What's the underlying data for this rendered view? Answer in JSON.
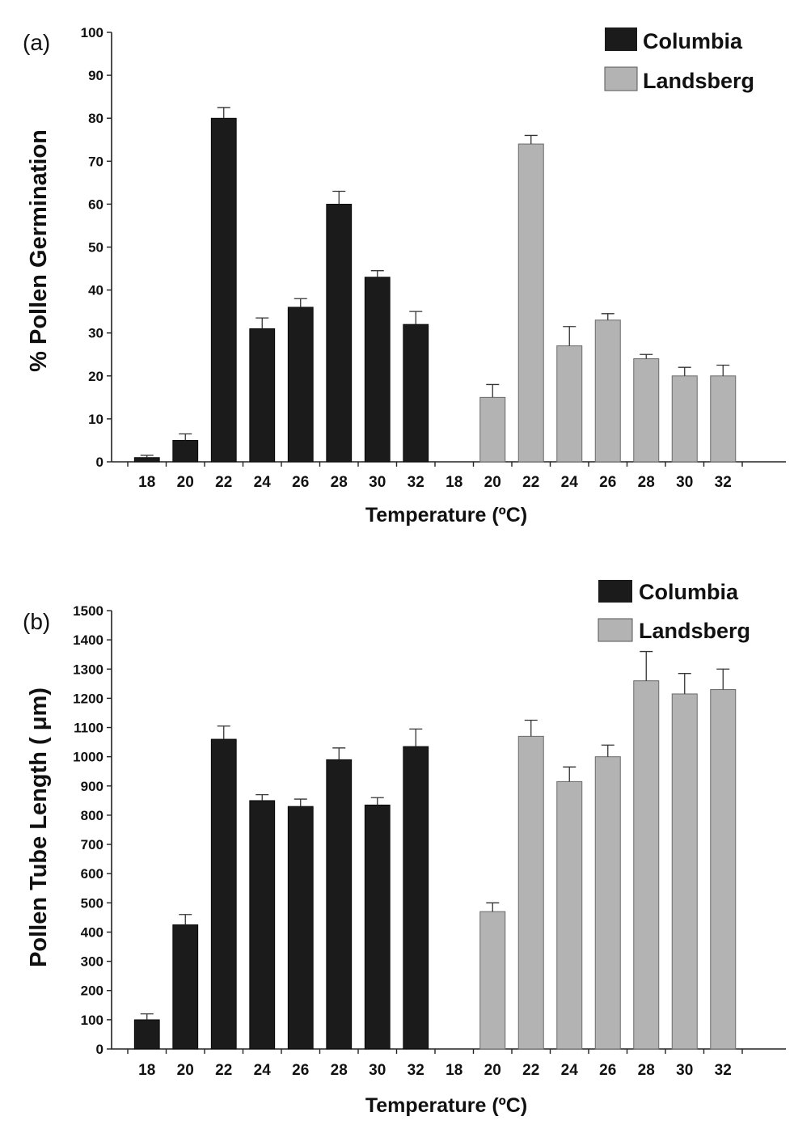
{
  "chart_data": [
    {
      "type": "bar",
      "panel_label": "(a)",
      "xlabel": "Temperature (ºC)",
      "ylabel": "% Pollen Germination",
      "ylim": [
        0,
        100
      ],
      "yticks": [
        0,
        10,
        20,
        30,
        40,
        50,
        60,
        70,
        80,
        90,
        100
      ],
      "legend_position": "top-right",
      "series": [
        {
          "name": "Columbia",
          "color": "#1b1b1b",
          "categories": [
            "18",
            "20",
            "22",
            "24",
            "26",
            "28",
            "30",
            "32"
          ],
          "values": [
            1,
            5,
            80,
            31,
            36,
            60,
            43,
            32
          ],
          "errors": [
            0.5,
            1.5,
            2.5,
            2.5,
            2,
            3,
            1.5,
            3
          ]
        },
        {
          "name": "Landsberg",
          "color": "#b3b3b3",
          "categories": [
            "18",
            "20",
            "22",
            "24",
            "26",
            "28",
            "30",
            "32"
          ],
          "values": [
            0,
            15,
            74,
            27,
            33,
            24,
            20,
            20
          ],
          "errors": [
            0,
            3,
            2,
            4.5,
            1.5,
            1,
            2,
            2.5
          ]
        }
      ]
    },
    {
      "type": "bar",
      "panel_label": "(b)",
      "xlabel": "Temperature (ºC)",
      "ylabel": "Pollen Tube Length ( μm)",
      "ylim": [
        0,
        1500
      ],
      "yticks": [
        0,
        100,
        200,
        300,
        400,
        500,
        600,
        700,
        800,
        900,
        1000,
        1100,
        1200,
        1300,
        1400,
        1500
      ],
      "legend_position": "top-right",
      "series": [
        {
          "name": "Columbia",
          "color": "#1b1b1b",
          "categories": [
            "18",
            "20",
            "22",
            "24",
            "26",
            "28",
            "30",
            "32"
          ],
          "values": [
            100,
            425,
            1060,
            850,
            830,
            990,
            835,
            1035
          ],
          "errors": [
            20,
            35,
            45,
            20,
            25,
            40,
            25,
            60
          ]
        },
        {
          "name": "Landsberg",
          "color": "#b3b3b3",
          "categories": [
            "18",
            "20",
            "22",
            "24",
            "26",
            "28",
            "30",
            "32"
          ],
          "values": [
            0,
            470,
            1070,
            915,
            1000,
            1260,
            1215,
            1230
          ],
          "errors": [
            0,
            30,
            55,
            50,
            40,
            100,
            70,
            70
          ]
        }
      ]
    }
  ]
}
